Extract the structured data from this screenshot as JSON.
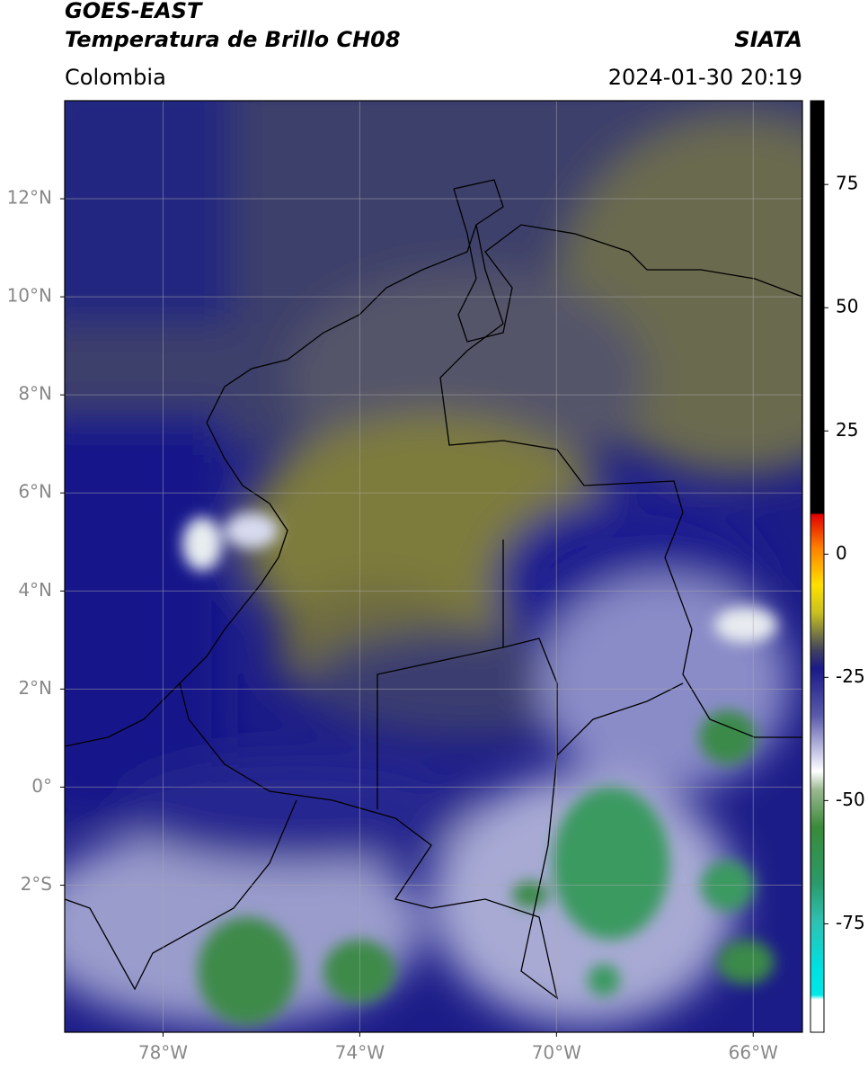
{
  "header": {
    "title": "GOES-EAST",
    "subtitle": "Temperatura de Brillo CH08",
    "source": "SIATA",
    "region": "Colombia",
    "datetime": "2024-01-30 20:19"
  },
  "map": {
    "xlim": [
      -80,
      -65
    ],
    "ylim": [
      -5,
      14
    ],
    "grid": true,
    "xticks": [
      {
        "value": -78,
        "label": "78°W"
      },
      {
        "value": -74,
        "label": "74°W"
      },
      {
        "value": -70,
        "label": "70°W"
      },
      {
        "value": -66,
        "label": "66°W"
      }
    ],
    "yticks": [
      {
        "value": 12,
        "label": "12°N"
      },
      {
        "value": 10,
        "label": "10°N"
      },
      {
        "value": 8,
        "label": "8°N"
      },
      {
        "value": 6,
        "label": "6°N"
      },
      {
        "value": 4,
        "label": "4°N"
      },
      {
        "value": 2,
        "label": "2°N"
      },
      {
        "value": 0,
        "label": "0°"
      },
      {
        "value": -2,
        "label": "2°S"
      }
    ]
  },
  "colorbar": {
    "lim": [
      -97,
      92
    ],
    "ticks": [
      75,
      50,
      25,
      0,
      -25,
      -50,
      -75
    ]
  }
}
